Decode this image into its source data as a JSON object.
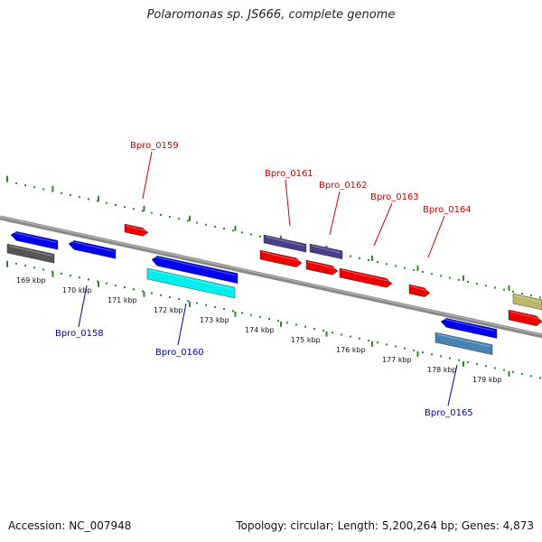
{
  "title": "Polaromonas sp. JS666, complete genome",
  "footer": {
    "accession": "Accession: NC_007948",
    "summary": "Topology: circular; Length: 5,200,264 bp; Genes: 4,873"
  },
  "colors": {
    "backbone": "#888888",
    "tick": "#2a8a2a",
    "label_top": "#cc0000",
    "label_bottom": "#0000aa"
  },
  "ticks": [
    "169 kbp",
    "170 kbp",
    "171 kbp",
    "172 kbp",
    "173 kbp",
    "174 kbp",
    "175 kbp",
    "176 kbp",
    "177 kbp",
    "178 kbp",
    "179 kbp"
  ],
  "labels": [
    {
      "text": "Bpro_0159",
      "strand": "top"
    },
    {
      "text": "Bpro_0161",
      "strand": "top"
    },
    {
      "text": "Bpro_0162",
      "strand": "top"
    },
    {
      "text": "Bpro_0163",
      "strand": "top"
    },
    {
      "text": "Bpro_0164",
      "strand": "top"
    },
    {
      "text": "Bpro_0158",
      "strand": "bottom"
    },
    {
      "text": "Bpro_0160",
      "strand": "bottom"
    },
    {
      "text": "Bpro_0165",
      "strand": "bottom"
    }
  ],
  "features": [
    {
      "color": "#0000ee",
      "dir": "left"
    },
    {
      "color": "#555555",
      "dir": "none"
    },
    {
      "color": "#0000ee",
      "dir": "left"
    },
    {
      "color": "#ee0000",
      "dir": "right"
    },
    {
      "color": "#0000ee",
      "dir": "left"
    },
    {
      "color": "#00eeee",
      "dir": "none"
    },
    {
      "color": "#483d8b",
      "dir": "none"
    },
    {
      "color": "#ee0000",
      "dir": "right"
    },
    {
      "color": "#483d8b",
      "dir": "none"
    },
    {
      "color": "#ee0000",
      "dir": "right"
    },
    {
      "color": "#ee0000",
      "dir": "right"
    },
    {
      "color": "#ee0000",
      "dir": "right"
    },
    {
      "color": "#0000ee",
      "dir": "left"
    },
    {
      "color": "#4682b4",
      "dir": "none"
    },
    {
      "color": "#bdb76b",
      "dir": "none"
    },
    {
      "color": "#ee0000",
      "dir": "right"
    }
  ]
}
